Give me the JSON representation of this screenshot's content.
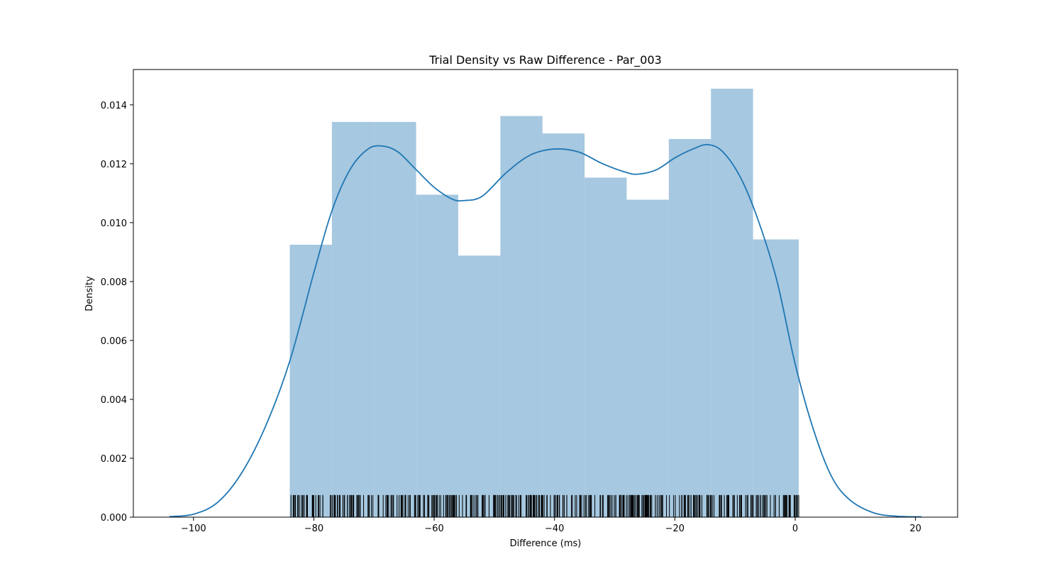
{
  "chart_data": {
    "type": "bar",
    "title": "Trial Density vs Raw Difference - Par_003",
    "xlabel": "Difference (ms)",
    "ylabel": "Density",
    "xlim": [
      -110,
      27
    ],
    "ylim": [
      0,
      0.0152
    ],
    "grid": false,
    "legend": "none",
    "xticks": [
      -100,
      -80,
      -60,
      -40,
      -20,
      0,
      20
    ],
    "xtick_labels": [
      "−100",
      "−80",
      "−60",
      "−40",
      "−20",
      "0",
      "20"
    ],
    "yticks": [
      0.0,
      0.002,
      0.004,
      0.006,
      0.008,
      0.01,
      0.012,
      0.014
    ],
    "ytick_labels": [
      "0.000",
      "0.002",
      "0.004",
      "0.006",
      "0.008",
      "0.010",
      "0.012",
      "0.014"
    ],
    "colors": {
      "bars": "#a6c8e0",
      "kde": "#1f77b4",
      "rug": "#000000",
      "axes": "#000000"
    },
    "histogram": {
      "bin_edges": [
        -84.0,
        -77.0,
        -70.0,
        -63.0,
        -56.0,
        -49.0,
        -42.0,
        -35.0,
        -28.0,
        -21.0,
        -14.0,
        -7.0,
        0.6
      ],
      "values": [
        0.00925,
        0.01342,
        0.01342,
        0.01095,
        0.00888,
        0.01362,
        0.01303,
        0.01153,
        0.01078,
        0.01284,
        0.01455,
        0.00943
      ]
    },
    "kde": {
      "x": [
        -104,
        -100,
        -96,
        -92,
        -88,
        -84,
        -80,
        -77,
        -74,
        -71,
        -68.5,
        -66,
        -63,
        -60,
        -57,
        -55,
        -52,
        -48,
        -44,
        -40,
        -36,
        -32,
        -28,
        -26,
        -23,
        -20,
        -17,
        -14.5,
        -12,
        -9,
        -6,
        -3,
        0,
        3,
        6,
        9,
        13,
        17,
        21
      ],
      "y": [
        2e-05,
        0.0001,
        0.0005,
        0.0015,
        0.0031,
        0.0053,
        0.0083,
        0.0104,
        0.0118,
        0.0125,
        0.0126,
        0.0124,
        0.0118,
        0.0112,
        0.0108,
        0.01075,
        0.0109,
        0.0117,
        0.0123,
        0.0125,
        0.0124,
        0.012,
        0.0117,
        0.01165,
        0.0118,
        0.0122,
        0.0125,
        0.01265,
        0.0124,
        0.0115,
        0.01,
        0.008,
        0.0052,
        0.003,
        0.0014,
        0.0006,
        0.00015,
        3e-05,
        1e-05
      ]
    },
    "rug": {
      "height": 0.00075,
      "x_start": -83.8,
      "x_end": 0.6,
      "count": 430
    }
  }
}
